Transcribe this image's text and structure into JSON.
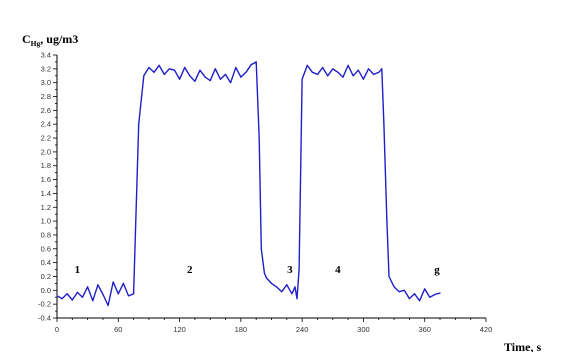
{
  "chart_data": {
    "type": "line",
    "ylabel_main": "C",
    "ylabel_sub": "Hg",
    "ylabel_unit": ", ug/m3",
    "xlabel": "Time, s",
    "xlim": [
      0,
      420
    ],
    "ylim": [
      -0.4,
      3.4
    ],
    "x_ticks": [
      0,
      60,
      120,
      180,
      240,
      300,
      360,
      420
    ],
    "y_ticks": [
      -0.4,
      -0.2,
      0.0,
      0.2,
      0.4,
      0.6,
      0.8,
      1.0,
      1.2,
      1.4,
      1.6,
      1.8,
      2.0,
      2.2,
      2.4,
      2.6,
      2.8,
      3.0,
      3.2,
      3.4
    ],
    "y_tick_labels": [
      "-0.4",
      "-0.2",
      "0.0",
      "0.2",
      "0.4",
      "0.6",
      "0.8",
      "1.0",
      "1.2",
      "1.4",
      "1.6",
      "1.8",
      "2.0",
      "2.2",
      "2.4",
      "2.6",
      "2.8",
      "3.0",
      "3.2",
      "3.4"
    ],
    "annotations": [
      {
        "text": "1",
        "x": 20,
        "y": 0.25
      },
      {
        "text": "2",
        "x": 130,
        "y": 0.25
      },
      {
        "text": "3",
        "x": 228,
        "y": 0.25
      },
      {
        "text": "4",
        "x": 275,
        "y": 0.25
      },
      {
        "text": "g",
        "x": 372,
        "y": 0.25
      }
    ],
    "series": [
      {
        "color": "#1f1fc8",
        "x": [
          0,
          5,
          10,
          15,
          20,
          25,
          30,
          35,
          40,
          45,
          50,
          55,
          60,
          65,
          70,
          75,
          80,
          85,
          90,
          95,
          100,
          105,
          110,
          115,
          120,
          125,
          130,
          135,
          140,
          145,
          150,
          155,
          160,
          165,
          170,
          175,
          180,
          185,
          190,
          195,
          198,
          200,
          203,
          205,
          210,
          215,
          220,
          225,
          230,
          233,
          235,
          237,
          240,
          245,
          250,
          255,
          260,
          265,
          270,
          275,
          280,
          285,
          290,
          295,
          300,
          305,
          310,
          315,
          318,
          320,
          323,
          325,
          330,
          335,
          340,
          345,
          350,
          355,
          360,
          365,
          370,
          375
        ],
        "y": [
          -0.08,
          -0.12,
          -0.05,
          -0.14,
          -0.03,
          -0.1,
          0.05,
          -0.15,
          0.08,
          -0.06,
          -0.22,
          0.12,
          -0.05,
          0.1,
          -0.08,
          -0.05,
          2.4,
          3.1,
          3.22,
          3.15,
          3.25,
          3.12,
          3.2,
          3.18,
          3.05,
          3.22,
          3.1,
          3.02,
          3.18,
          3.08,
          3.03,
          3.2,
          3.05,
          3.12,
          3.0,
          3.22,
          3.08,
          3.15,
          3.26,
          3.3,
          2.2,
          0.6,
          0.25,
          0.18,
          0.1,
          0.05,
          -0.02,
          0.08,
          -0.05,
          0.05,
          -0.12,
          0.3,
          3.05,
          3.25,
          3.15,
          3.12,
          3.22,
          3.1,
          3.2,
          3.15,
          3.08,
          3.25,
          3.1,
          3.18,
          3.05,
          3.2,
          3.12,
          3.15,
          3.2,
          2.4,
          1.0,
          0.2,
          0.05,
          -0.02,
          0.0,
          -0.12,
          -0.05,
          -0.15,
          0.02,
          -0.1,
          -0.06,
          -0.04
        ]
      }
    ]
  }
}
